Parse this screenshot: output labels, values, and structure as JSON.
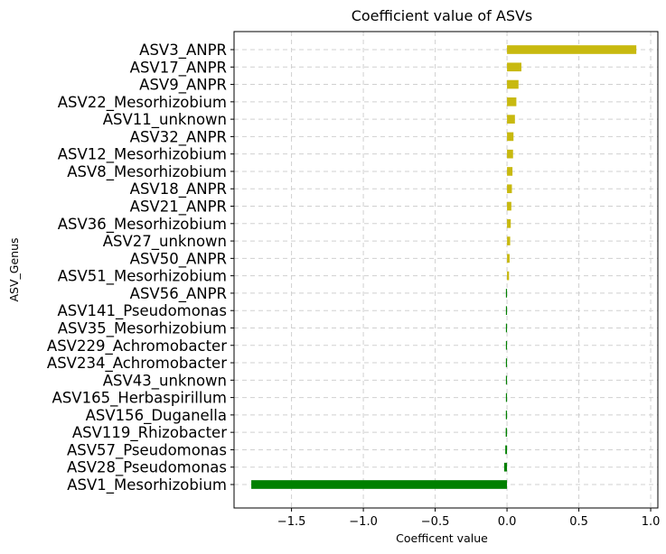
{
  "chart_data": {
    "type": "bar",
    "orientation": "horizontal",
    "title": "Coefficient value of ASVs",
    "xlabel": "Coefficent value",
    "ylabel": "ASV_Genus",
    "xlim": [
      -1.9,
      1.05
    ],
    "xticks": [
      -1.5,
      -1.0,
      -0.5,
      0.0,
      0.5,
      1.0
    ],
    "xtick_labels": [
      "−1.5",
      "−1.0",
      "−0.5",
      "0.0",
      "0.5",
      "1.0"
    ],
    "grid": true,
    "colors": {
      "positive": "#c8b90f",
      "negative": "#008000"
    },
    "categories": [
      "ASV3_ANPR",
      "ASV17_ANPR",
      "ASV9_ANPR",
      "ASV22_Mesorhizobium",
      "ASV11_unknown",
      "ASV32_ANPR",
      "ASV12_Mesorhizobium",
      "ASV8_Mesorhizobium",
      "ASV18_ANPR",
      "ASV21_ANPR",
      "ASV36_Mesorhizobium",
      "ASV27_unknown",
      "ASV50_ANPR",
      "ASV51_Mesorhizobium",
      "ASV56_ANPR",
      "ASV141_Pseudomonas",
      "ASV35_Mesorhizobium",
      "ASV229_Achromobacter",
      "ASV234_Achromobacter",
      "ASV43_unknown",
      "ASV165_Herbaspirillum",
      "ASV156_Duganella",
      "ASV119_Rhizobacter",
      "ASV57_Pseudomonas",
      "ASV28_Pseudomonas",
      "ASV1_Mesorhizobium"
    ],
    "values": [
      0.9,
      0.1,
      0.08,
      0.065,
      0.055,
      0.045,
      0.042,
      0.038,
      0.034,
      0.03,
      0.026,
      0.022,
      0.018,
      0.014,
      -0.005,
      -0.005,
      -0.005,
      -0.006,
      -0.006,
      -0.006,
      -0.007,
      -0.008,
      -0.009,
      -0.012,
      -0.02,
      -1.78
    ]
  }
}
